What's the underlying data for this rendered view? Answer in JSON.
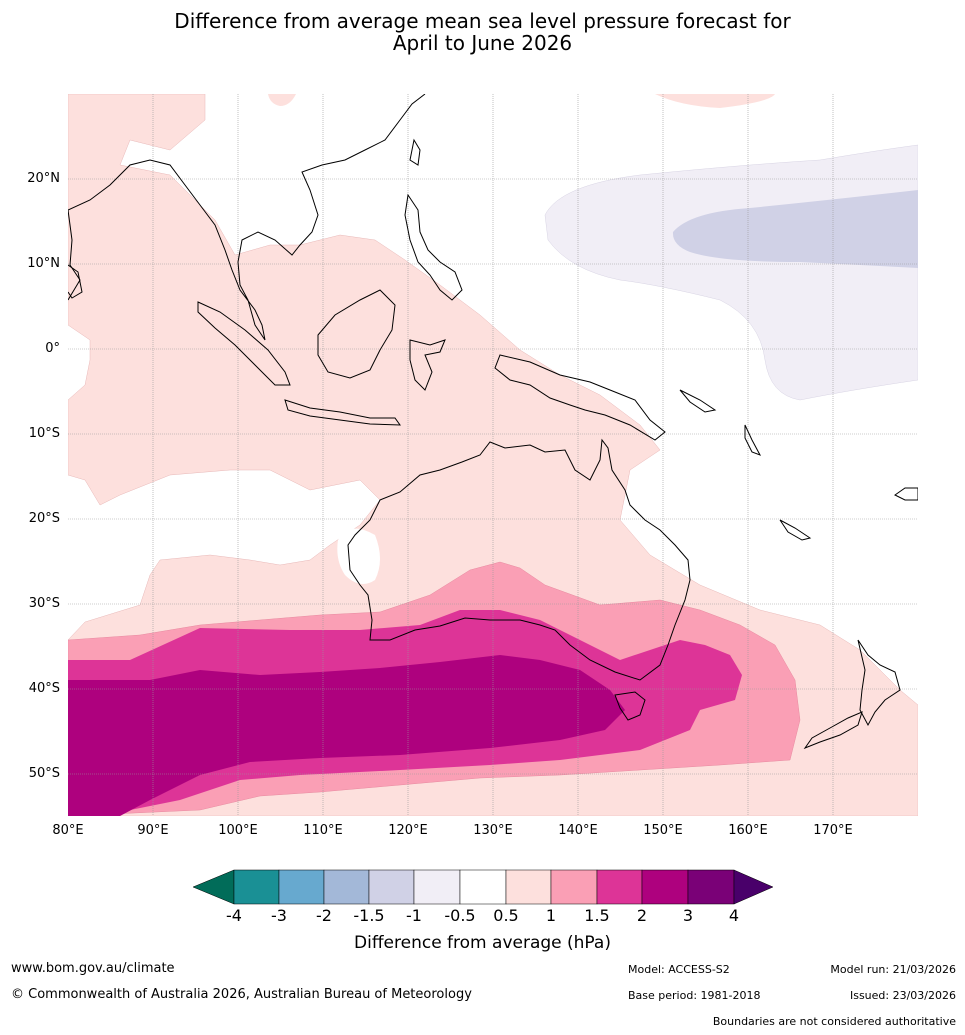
{
  "title": {
    "line1": "Difference from average mean sea level pressure forecast for",
    "line2": "April to June 2026"
  },
  "axes": {
    "lat_labels": [
      "20°N",
      "10°N",
      "0°",
      "10°S",
      "20°S",
      "30°S",
      "40°S",
      "50°S"
    ],
    "lon_labels": [
      "80°E",
      "90°E",
      "100°E",
      "110°E",
      "120°E",
      "130°E",
      "140°E",
      "150°E",
      "160°E",
      "170°E"
    ]
  },
  "colorbar": {
    "title": "Difference from average (hPa)",
    "ticks": [
      "-4",
      "-3",
      "-2",
      "-1.5",
      "-1",
      "-0.5",
      "0.5",
      "1",
      "1.5",
      "2",
      "3",
      "4"
    ],
    "colors": [
      "#1a9095",
      "#67a9cf",
      "#a3b8d8",
      "#d0d1e6",
      "#f1eef6",
      "#ffffff",
      "#fde0dd",
      "#fa9fb5",
      "#dd3497",
      "#ae017e",
      "#7a0177"
    ],
    "low_extend_color": "#016c59",
    "high_extend_color": "#49006a"
  },
  "footer": {
    "website": "www.bom.gov.au/climate",
    "copyright": "© Commonwealth of Australia 2026, Australian Bureau of Meteorology",
    "model": "Model: ACCESS-S2",
    "base_period": "Base period: 1981-2018",
    "model_run": "Model run: 21/03/2026",
    "issued": "Issued: 23/03/2026",
    "disclaimer": "Boundaries are not considered authoritative"
  }
}
